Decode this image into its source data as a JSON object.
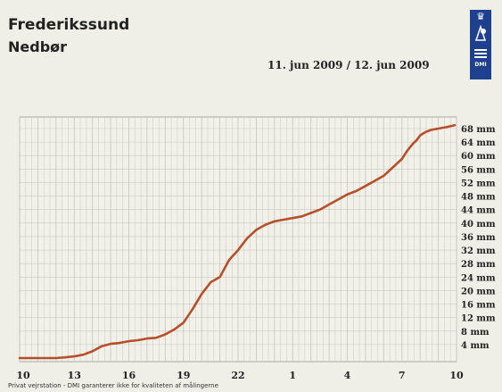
{
  "header": {
    "title": "Frederikssund",
    "subtitle": "Nedbør",
    "date_range": "11. jun 2009 / 12. jun 2009"
  },
  "logo": {
    "text": "DMI",
    "color": "#1f3f8f"
  },
  "footnote": "Privat vejrstation - DMI garanterer ikke for kvaliteten af målingerne",
  "colors": {
    "line": "#b5502a",
    "grid": "#c9c9c1",
    "plot_background": "#f1f1ea",
    "border": "#a8a8a0"
  },
  "chart_data": {
    "type": "line",
    "title": "",
    "xlabel": "",
    "ylabel": "",
    "x_ticks": [
      "10",
      "13",
      "16",
      "19",
      "22",
      "1",
      "4",
      "7",
      "10"
    ],
    "y_ticks": [
      "4 mm",
      "8 mm",
      "12 mm",
      "16 mm",
      "20 mm",
      "24 mm",
      "28 mm",
      "32 mm",
      "36 mm",
      "40 mm",
      "44 mm",
      "48 mm",
      "52 mm",
      "56 mm",
      "60 mm",
      "64 mm",
      "68 mm"
    ],
    "y_range": [
      0,
      68
    ],
    "x_range_hours": [
      10,
      34
    ],
    "grid": true,
    "series": [
      {
        "values": [
          [
            10.0,
            0.0
          ],
          [
            11.0,
            0.0
          ],
          [
            12.0,
            0.0
          ],
          [
            12.5,
            0.2
          ],
          [
            13.0,
            0.5
          ],
          [
            13.5,
            1.0
          ],
          [
            14.0,
            2.0
          ],
          [
            14.5,
            3.5
          ],
          [
            15.0,
            4.2
          ],
          [
            15.5,
            4.5
          ],
          [
            16.0,
            5.0
          ],
          [
            16.5,
            5.3
          ],
          [
            17.0,
            5.8
          ],
          [
            17.5,
            6.0
          ],
          [
            18.0,
            7.0
          ],
          [
            18.5,
            8.5
          ],
          [
            19.0,
            10.5
          ],
          [
            19.5,
            14.5
          ],
          [
            20.0,
            19.0
          ],
          [
            20.5,
            22.5
          ],
          [
            21.0,
            24.0
          ],
          [
            21.5,
            29.0
          ],
          [
            22.0,
            32.0
          ],
          [
            22.5,
            35.5
          ],
          [
            23.0,
            38.0
          ],
          [
            23.5,
            39.5
          ],
          [
            24.0,
            40.5
          ],
          [
            24.5,
            41.0
          ],
          [
            25.0,
            41.5
          ],
          [
            25.5,
            42.0
          ],
          [
            26.0,
            43.0
          ],
          [
            26.5,
            44.0
          ],
          [
            27.0,
            45.5
          ],
          [
            27.5,
            47.0
          ],
          [
            28.0,
            48.5
          ],
          [
            28.5,
            49.5
          ],
          [
            29.0,
            51.0
          ],
          [
            29.5,
            52.5
          ],
          [
            30.0,
            54.0
          ],
          [
            30.5,
            56.5
          ],
          [
            31.0,
            59.0
          ],
          [
            31.3,
            61.5
          ],
          [
            31.6,
            63.5
          ],
          [
            31.8,
            64.5
          ],
          [
            32.0,
            66.0
          ],
          [
            32.3,
            67.0
          ],
          [
            32.6,
            67.6
          ],
          [
            33.0,
            68.0
          ],
          [
            33.5,
            68.5
          ],
          [
            33.9,
            69.0
          ]
        ]
      }
    ]
  }
}
